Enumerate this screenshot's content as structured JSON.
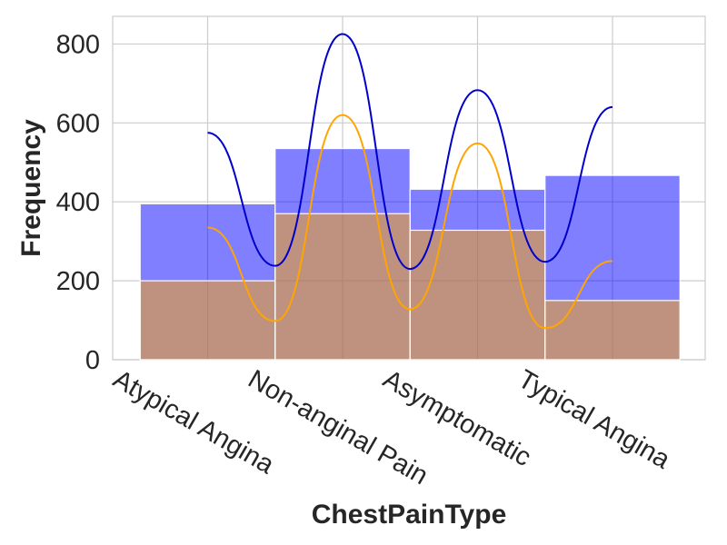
{
  "chart_data": {
    "type": "bar",
    "xlabel": "ChestPainType",
    "ylabel": "Frequency",
    "categories": [
      "Atypical Angina",
      "Non-anginal Pain",
      "Asymptomatic",
      "Typical Angina"
    ],
    "ylim": [
      0,
      870
    ],
    "yticks": [
      0,
      200,
      400,
      600,
      800
    ],
    "grid": true,
    "series": [
      {
        "color": "#0000ff",
        "bar_alpha": 0.5,
        "values": [
          395,
          535,
          432,
          467
        ],
        "kde_color": "#0000cc",
        "kde_peaks": [
          575,
          825,
          683,
          640
        ],
        "kde_troughs": [
          238,
          230,
          248
        ]
      },
      {
        "color": "#ffa500",
        "bar_alpha": 0.5,
        "values": [
          200,
          370,
          328,
          150
        ],
        "kde_color": "#ffa500",
        "kde_peaks": [
          335,
          620,
          548,
          250
        ],
        "kde_troughs": [
          98,
          128,
          80
        ]
      }
    ]
  }
}
